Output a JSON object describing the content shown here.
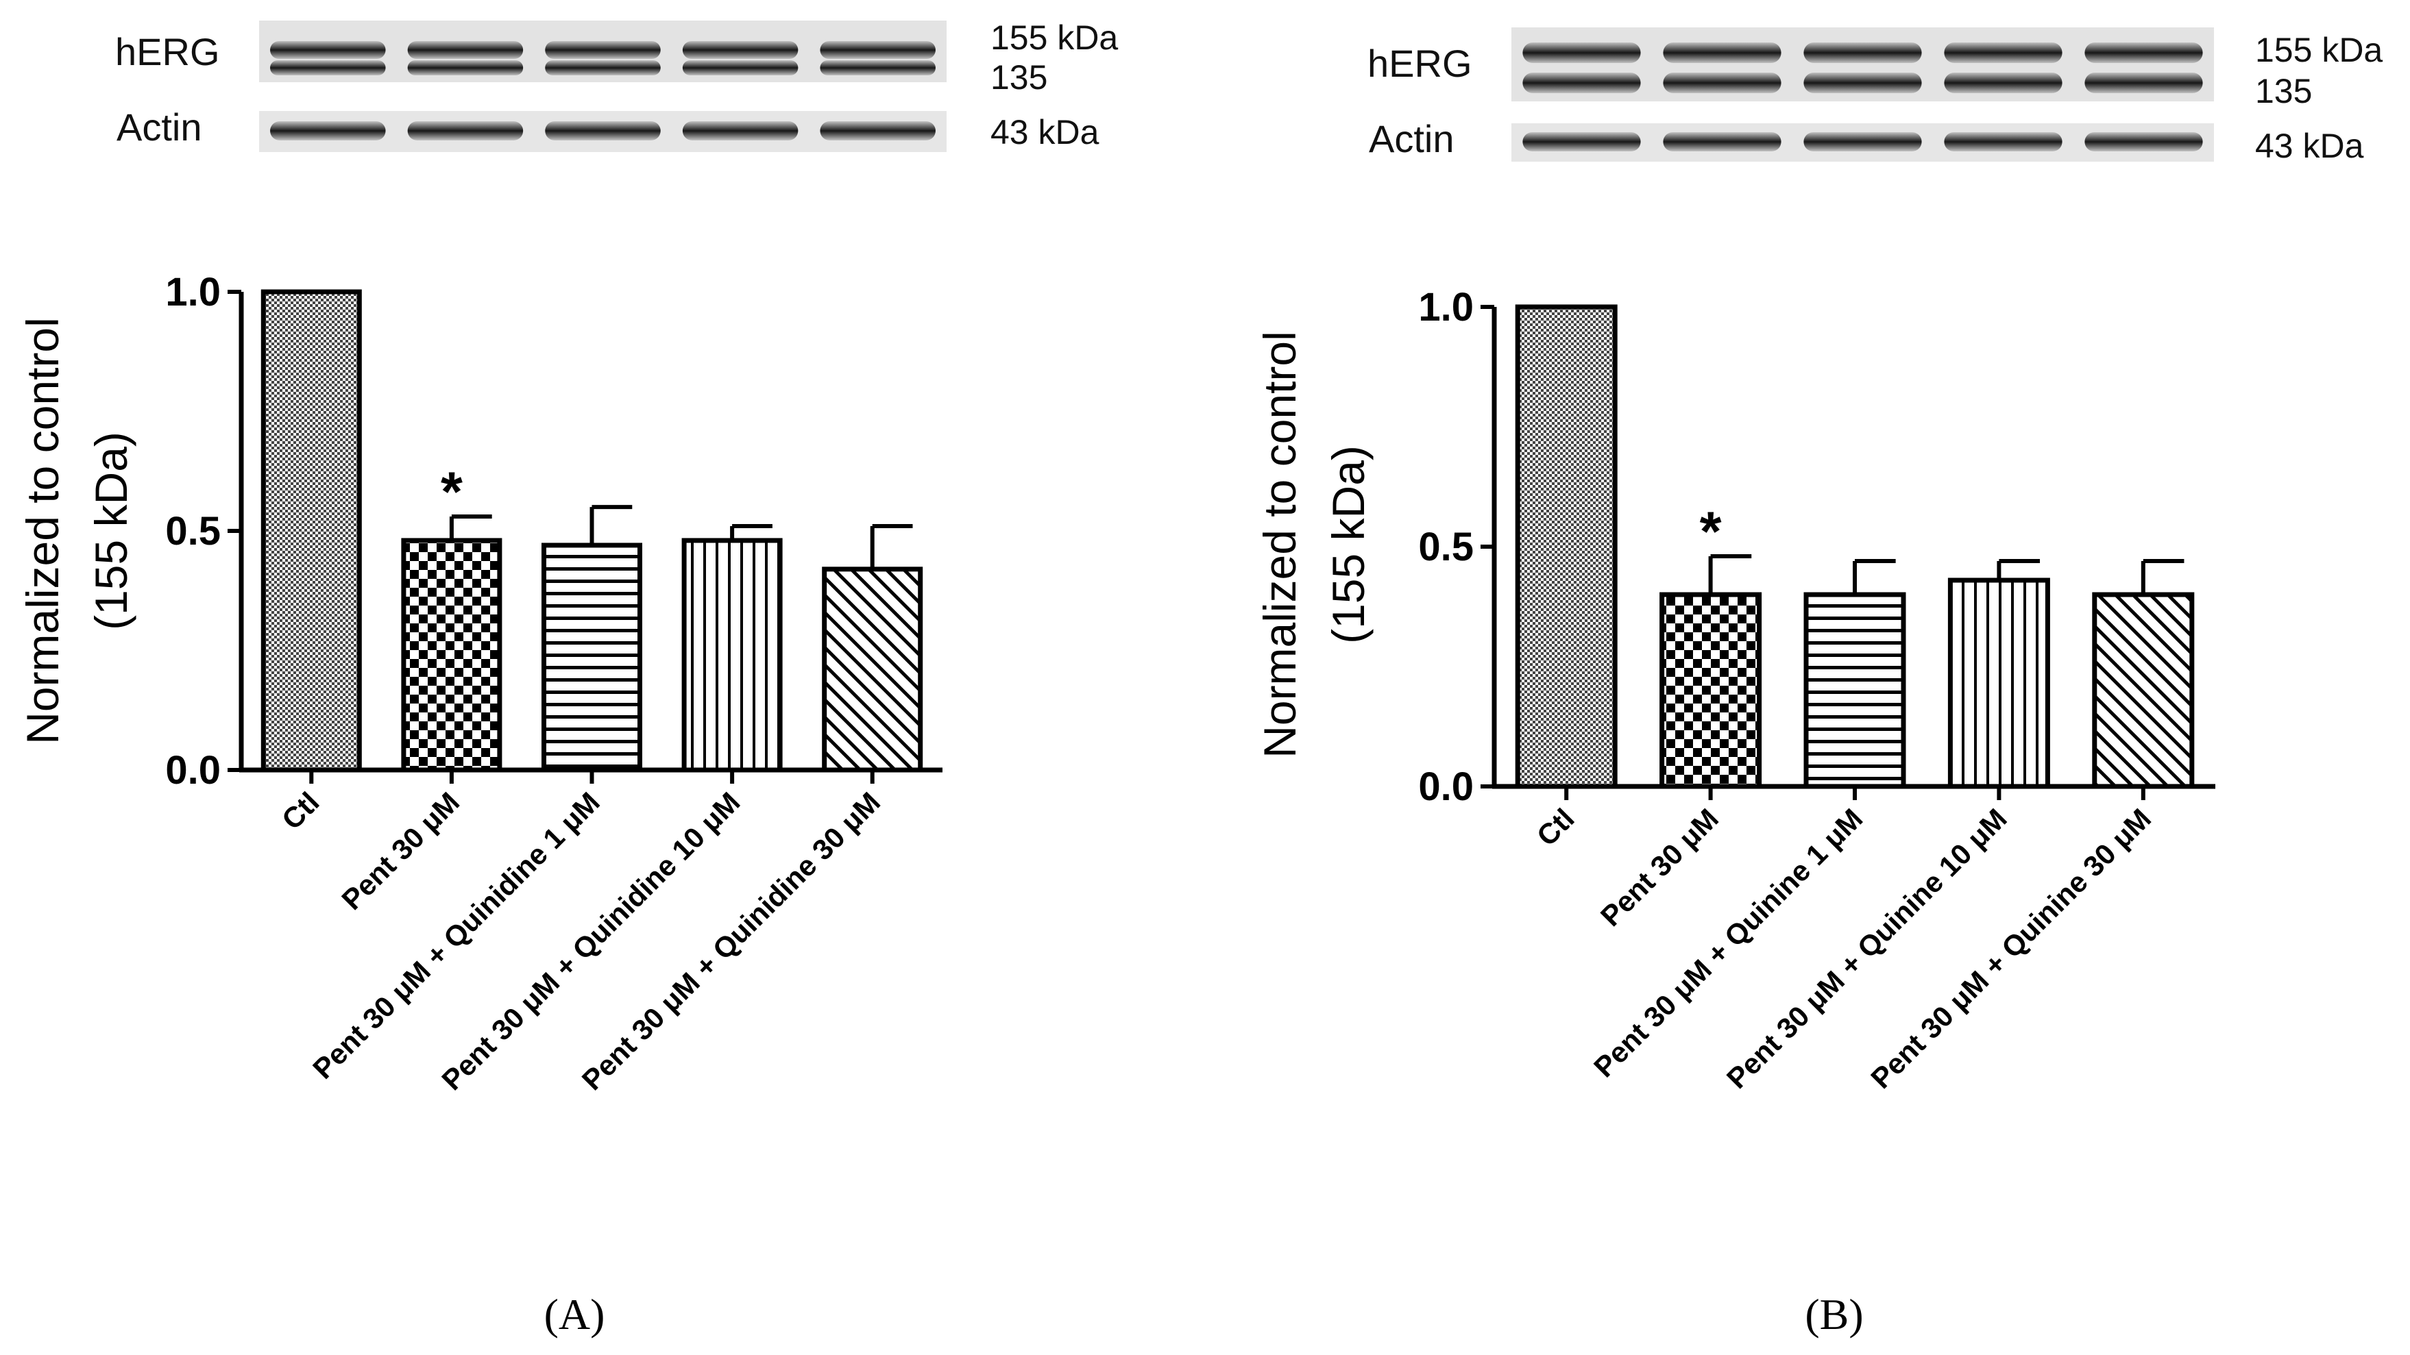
{
  "panels": [
    {
      "id": "A",
      "panel_label": "(A)",
      "blot": {
        "rows": [
          {
            "label": "hERG",
            "markers": [
              "155 kDa",
              "135"
            ]
          },
          {
            "label": "Actin",
            "markers": [
              "43 kDa"
            ]
          }
        ],
        "lanes": 5
      }
    },
    {
      "id": "B",
      "panel_label": "(B)",
      "blot": {
        "rows": [
          {
            "label": "hERG",
            "markers": [
              "155 kDa",
              "135"
            ]
          },
          {
            "label": "Actin",
            "markers": [
              "43 kDa"
            ]
          }
        ],
        "lanes": 5
      }
    }
  ],
  "chart_data": [
    {
      "type": "bar",
      "panel": "A",
      "ylabel_lines": [
        "Normalized to control",
        "(155 kDa)"
      ],
      "ylim": [
        0,
        1.0
      ],
      "yticks": [
        "0.0",
        "0.5",
        "1.0"
      ],
      "categories": [
        "Ctl",
        "Pent 30 μM",
        "Pent 30 μM + Quinidine 1 μM",
        "Pent 30 μM + Quinidine 10 μM",
        "Pent 30 μM + Quinidine 30 μM"
      ],
      "values": [
        1.0,
        0.48,
        0.47,
        0.48,
        0.42
      ],
      "errors": [
        0,
        0.05,
        0.08,
        0.03,
        0.09
      ],
      "significance": [
        "",
        "*",
        "",
        "",
        ""
      ],
      "patterns": [
        "fine-check",
        "check",
        "horizontal",
        "vertical",
        "diagonal"
      ]
    },
    {
      "type": "bar",
      "panel": "B",
      "ylabel_lines": [
        "Normalized to control",
        "(155 kDa)"
      ],
      "ylim": [
        0,
        1.0
      ],
      "yticks": [
        "0.0",
        "0.5",
        "1.0"
      ],
      "categories": [
        "Ctl",
        "Pent 30 μM",
        "Pent 30 μM + Quinine 1 μM",
        "Pent 30 μM + Quinine 10 μM",
        "Pent 30 μM + Quinine 30 μM"
      ],
      "values": [
        1.0,
        0.4,
        0.4,
        0.43,
        0.4
      ],
      "errors": [
        0,
        0.08,
        0.07,
        0.04,
        0.07
      ],
      "significance": [
        "",
        "*",
        "",
        "",
        ""
      ],
      "patterns": [
        "fine-check",
        "check",
        "horizontal",
        "vertical",
        "diagonal"
      ]
    }
  ]
}
